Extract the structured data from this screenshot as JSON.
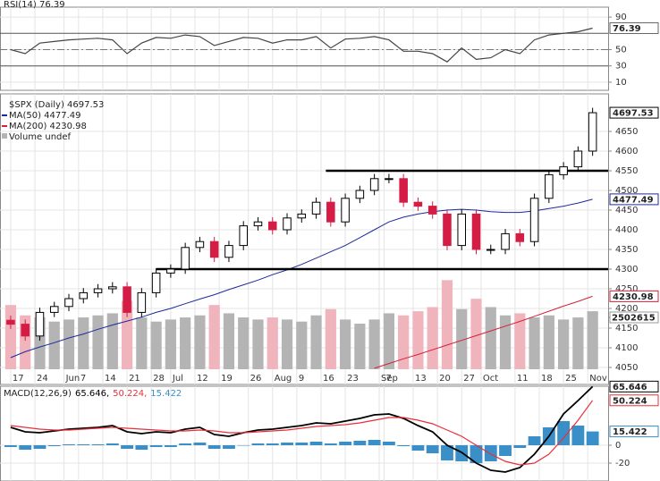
{
  "chart_data": [
    {
      "type": "line",
      "title": "RSI(14) 76.39",
      "ylim": [
        0,
        100
      ],
      "yticks": [
        10,
        30,
        50,
        90
      ],
      "bands": [
        30,
        50,
        70
      ],
      "grid": true,
      "series": [
        {
          "name": "RSI(14)",
          "color": "#444444",
          "values": [
            50,
            45,
            58,
            60,
            62,
            63,
            64,
            62,
            45,
            58,
            65,
            64,
            68,
            66,
            55,
            60,
            65,
            64,
            58,
            62,
            62,
            66,
            52,
            63,
            64,
            66,
            62,
            48,
            48,
            45,
            35,
            52,
            38,
            40,
            50,
            45,
            62,
            68,
            70,
            72,
            76.39
          ]
        }
      ]
    },
    {
      "type": "candlestick",
      "title": "$SPX (Daily) 4697.53",
      "x": [
        0,
        3,
        6,
        9,
        12,
        15,
        18,
        21,
        24,
        27,
        30,
        33,
        36,
        39,
        42,
        45,
        48,
        51,
        54,
        57,
        60,
        63,
        66,
        69,
        72,
        75,
        78,
        81,
        84,
        87,
        90,
        93,
        96,
        99,
        102,
        105,
        108,
        111,
        114,
        117,
        120
      ],
      "xlim": [
        -2.2,
        123.2
      ],
      "xticks": [
        {
          "value": 0,
          "label": "17"
        },
        {
          "value": 5,
          "label": "24"
        },
        {
          "value": 11,
          "label": "Jun"
        },
        {
          "value": 14,
          "label": "7"
        },
        {
          "value": 19,
          "label": "14"
        },
        {
          "value": 24,
          "label": "21"
        },
        {
          "value": 29,
          "label": "28"
        },
        {
          "value": 33,
          "label": "Jul"
        },
        {
          "value": 38,
          "label": "12"
        },
        {
          "value": 43,
          "label": "19"
        },
        {
          "value": 49,
          "label": "26"
        },
        {
          "value": 54,
          "label": "Aug"
        },
        {
          "value": 59,
          "label": "9"
        },
        {
          "value": 64,
          "label": "16"
        },
        {
          "value": 69,
          "label": "23"
        },
        {
          "value": 76,
          "label": "Sep"
        },
        {
          "value": 77,
          "label": "7"
        },
        {
          "value": 83,
          "label": "13"
        },
        {
          "value": 88,
          "label": "20"
        },
        {
          "value": 93,
          "label": "27"
        },
        {
          "value": 97,
          "label": "Oct"
        },
        {
          "value": 104,
          "label": "11"
        },
        {
          "value": 109,
          "label": "18"
        },
        {
          "value": 114,
          "label": "25"
        },
        {
          "value": 119,
          "label": "Nov"
        }
      ],
      "ylim": [
        4045.5,
        4738.6
      ],
      "yticks": [
        4050,
        4100,
        4150,
        4200,
        4250,
        4300,
        4350,
        4400,
        4450,
        4500,
        4550,
        4600,
        4650
      ],
      "grid": true,
      "up_color": "#ffffff",
      "down_color": "#d41c44",
      "open": [
        4170,
        4160,
        4130,
        4190,
        4205,
        4225,
        4240,
        4250,
        4255,
        4190,
        4240,
        4290,
        4300,
        4355,
        4370,
        4330,
        4360,
        4410,
        4420,
        4400,
        4430,
        4440,
        4470,
        4420,
        4480,
        4500,
        4530,
        4530,
        4470,
        4460,
        4440,
        4360,
        4440,
        4350,
        4350,
        4390,
        4370,
        4480,
        4540,
        4560,
        4600
      ],
      "high": [
        4182,
        4172,
        4202,
        4217,
        4237,
        4252,
        4262,
        4267,
        4267,
        4252,
        4302,
        4312,
        4367,
        4382,
        4382,
        4372,
        4422,
        4432,
        4432,
        4442,
        4452,
        4482,
        4482,
        4492,
        4512,
        4542,
        4542,
        4542,
        4482,
        4472,
        4452,
        4452,
        4452,
        4362,
        4402,
        4402,
        4492,
        4552,
        4572,
        4612,
        4710
      ],
      "low": [
        4148,
        4118,
        4118,
        4178,
        4193,
        4213,
        4228,
        4238,
        4178,
        4178,
        4228,
        4278,
        4288,
        4343,
        4318,
        4318,
        4348,
        4398,
        4388,
        4388,
        4418,
        4428,
        4408,
        4408,
        4468,
        4488,
        4518,
        4458,
        4448,
        4428,
        4348,
        4348,
        4338,
        4338,
        4338,
        4358,
        4358,
        4468,
        4528,
        4548,
        4588
      ],
      "close": [
        4160,
        4130,
        4190,
        4205,
        4225,
        4240,
        4250,
        4255,
        4190,
        4240,
        4290,
        4300,
        4355,
        4370,
        4330,
        4360,
        4410,
        4420,
        4400,
        4430,
        4440,
        4470,
        4420,
        4480,
        4500,
        4530,
        4530,
        4470,
        4460,
        4440,
        4360,
        4440,
        4350,
        4350,
        4390,
        4370,
        4480,
        4540,
        4560,
        4600,
        4697.53
      ],
      "lines": [
        {
          "y": 4550,
          "x": 65
        },
        {
          "y": 4300,
          "x": 30
        }
      ],
      "series": [
        {
          "name": "MA(50) 4477.49",
          "color": "#1c2a9c",
          "values": [
            4075,
            4090,
            4102,
            4113,
            4125,
            4135,
            4147,
            4158,
            4168,
            4178,
            4190,
            4200,
            4212,
            4224,
            4235,
            4248,
            4260,
            4272,
            4286,
            4298,
            4312,
            4328,
            4344,
            4360,
            4380,
            4400,
            4420,
            4432,
            4440,
            4446,
            4450,
            4452,
            4450,
            4446,
            4444,
            4444,
            4448,
            4454,
            4460,
            4468,
            4477.49
          ]
        },
        {
          "name": "MA(200) 4230.98",
          "color": "#d4203a",
          "values": [
            null,
            null,
            null,
            null,
            null,
            null,
            null,
            null,
            null,
            null,
            null,
            null,
            null,
            null,
            null,
            null,
            null,
            null,
            null,
            null,
            null,
            null,
            null,
            null,
            null,
            4048,
            4060,
            4072,
            4083,
            4095,
            4107,
            4119,
            4131,
            4143,
            4155,
            4167,
            4180,
            4193,
            4206,
            4218,
            4230.98
          ]
        }
      ],
      "volume": {
        "name": "Volume undef",
        "ylim": [
          0,
          13160000
        ],
        "yticks": [
          2502615
        ],
        "up_color": "#b4b4b4",
        "down_color": "#f0b4bc",
        "values": [
          3100000,
          2600000,
          2500000,
          2300000,
          2400000,
          2500000,
          2600000,
          2700000,
          3300000,
          2500000,
          2300000,
          2400000,
          2500000,
          2600000,
          3100000,
          2700000,
          2500000,
          2400000,
          2500000,
          2400000,
          2300000,
          2600000,
          2900000,
          2400000,
          2200000,
          2400000,
          2700000,
          2600000,
          2800000,
          3000000,
          4300000,
          2900000,
          3400000,
          3000000,
          2600000,
          2700000,
          2500000,
          2600000,
          2400000,
          2500000,
          2800000
        ]
      }
    },
    {
      "type": "combo",
      "title": "MACD(12,26,9)",
      "ylim": [
        -40,
        66
      ],
      "yticks": [
        0,
        -20
      ],
      "grid": true,
      "series": [
        {
          "name": "65.646,",
          "color": "#000000",
          "kind": "line",
          "values": [
            20,
            15,
            14,
            16,
            18,
            19,
            20,
            22,
            15,
            13,
            15,
            14,
            18,
            20,
            12,
            10,
            14,
            17,
            18,
            20,
            22,
            25,
            24,
            27,
            30,
            34,
            35,
            30,
            22,
            15,
            0,
            -8,
            -20,
            -28,
            -30,
            -25,
            -10,
            10,
            35,
            50,
            65.646
          ]
        },
        {
          "name": "50.224,",
          "color": "#e8303a",
          "kind": "line",
          "values": [
            22,
            20,
            18,
            17,
            17,
            18,
            19,
            20,
            19,
            18,
            17,
            16,
            16,
            17,
            16,
            14,
            14,
            15,
            16,
            17,
            19,
            21,
            22,
            23,
            25,
            28,
            31,
            31,
            28,
            24,
            17,
            10,
            0,
            -10,
            -18,
            -22,
            -20,
            -10,
            8,
            28,
            50.224
          ]
        },
        {
          "name": "15.422",
          "color": "#3a8fc8",
          "kind": "bar",
          "values": [
            -2,
            -5,
            -4,
            -1,
            1,
            1,
            1,
            2,
            -4,
            -5,
            -2,
            -2,
            2,
            3,
            -4,
            -4,
            0,
            2,
            2,
            3,
            3,
            4,
            2,
            4,
            5,
            6,
            4,
            -1,
            -6,
            -9,
            -17,
            -18,
            -20,
            -18,
            -12,
            -3,
            10,
            20,
            27,
            22,
            15.422
          ]
        }
      ]
    }
  ]
}
